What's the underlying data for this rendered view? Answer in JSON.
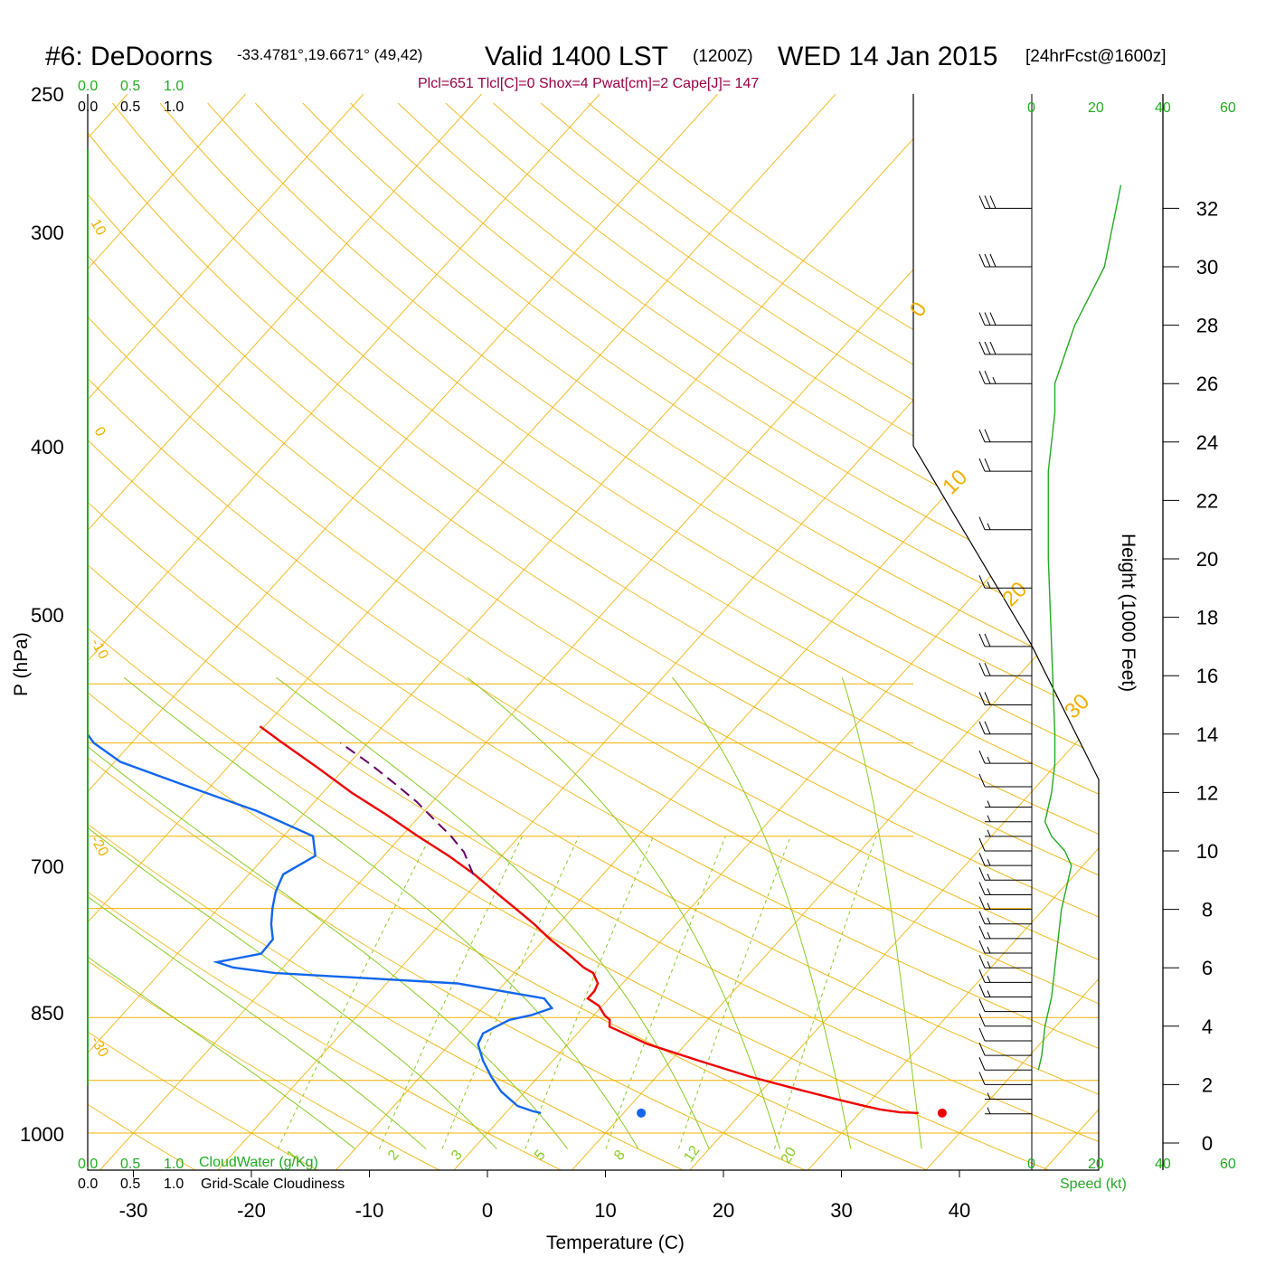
{
  "header": {
    "station": "#6: DeDoorns",
    "coords": "-33.4781°,19.6671° (49,42)",
    "valid": "Valid 1400 LST",
    "utc": "(1200Z)",
    "date": "WED 14 Jan 2015",
    "forecast": "[24hrFcst@1600z]",
    "indices": "Plcl=651 Tlcl[C]=0 Shox=4 Pwat[cm]=2 Cape[J]= 147"
  },
  "top_scales": {
    "green": [
      "0.0",
      "0.5",
      "1.0"
    ],
    "black": [
      "0.0",
      "0.5",
      "1.0"
    ]
  },
  "bottom_legend": {
    "green_scale": [
      "0.0",
      "0.5",
      "1.0"
    ],
    "cloudwater_label": "CloudWater (g/Kg)",
    "black_scale": [
      "0.0",
      "0.5",
      "1.0"
    ],
    "cloudiness_label": "Grid-Scale Cloudiness"
  },
  "wind_panel": {
    "speed_ticks": [
      "0",
      "20",
      "40",
      "60"
    ],
    "speed_label": "Speed (kt)"
  },
  "axes": {
    "ylabel": "P (hPa)",
    "xlabel": "Temperature (C)",
    "height_label": "Height (1000 Feet)",
    "pressure_ticks": [
      "250",
      "300",
      "400",
      "500",
      "700",
      "850",
      "1000"
    ],
    "temperature_ticks": [
      "-30",
      "-20",
      "-10",
      "0",
      "10",
      "20",
      "30",
      "40"
    ],
    "height_ticks": [
      "32",
      "30",
      "28",
      "26",
      "24",
      "22",
      "20",
      "18",
      "16",
      "14",
      "12",
      "10",
      "8",
      "6",
      "4",
      "2",
      "0"
    ]
  },
  "isotherm_labels": [
    "10",
    "0",
    "-10",
    "-20",
    "-30"
  ],
  "dry_adiabat_labels": [
    "0",
    "10",
    "20",
    "30"
  ],
  "mixing_ratio_labels": [
    "1",
    "2",
    "3",
    "5",
    "8",
    "12",
    "20"
  ],
  "colors": {
    "temperature": "#ee0000",
    "dewpoint": "#1166ee",
    "parcel": "#660066",
    "isotherms": "#f0b000",
    "moist_adiabats": "#88cc22",
    "mixing_ratio": "#88cc22",
    "wind_speed": "#22aa22",
    "header_indices": "#990044"
  },
  "chart_data": {
    "type": "line",
    "title": "#6: DeDoorns -33.4781°,19.6671° (49,42) Valid 1400 LST (1200Z) WED 14 Jan 2015 [24hrFcst@1600z]",
    "xlabel": "Temperature (C)",
    "ylabel": "P (hPa)",
    "xlim": [
      -30,
      40
    ],
    "ylim": [
      1000,
      250
    ],
    "y_scale": "log",
    "series": [
      {
        "name": "Temperature",
        "pressure": [
          940,
          938,
          930,
          920,
          900,
          870,
          840,
          800,
          760,
          720,
          705,
          695,
          675,
          660,
          645,
          630,
          610,
          600,
          575,
          550,
          525,
          500,
          475,
          450,
          425,
          400,
          375,
          350,
          325,
          300,
          285
        ],
        "temperature": [
          35,
          33.4,
          31.5,
          29.9,
          26.9,
          22.4,
          17.9,
          12.4,
          6.8,
          2.2,
          1.7,
          0.9,
          -0.3,
          -1.8,
          -1.8,
          -2.1,
          -3.3,
          -4.5,
          -6.9,
          -9.5,
          -12.0,
          -14.8,
          -17.8,
          -20.9,
          -24.5,
          -28.6,
          -32.8,
          -37.5,
          -42.1,
          -47.2,
          -50.4
        ]
      },
      {
        "name": "Dewpoint",
        "pressure": [
          940,
          935,
          920,
          880,
          840,
          800,
          760,
          735,
          705,
          695,
          680,
          660,
          630,
          610,
          600,
          590,
          575,
          550,
          525,
          500,
          475,
          450,
          425,
          400,
          370,
          340,
          318,
          300,
          285
        ],
        "temperature": [
          3.0,
          2.2,
          0.5,
          -2.0,
          -4.0,
          -5.9,
          -7.6,
          -8.0,
          -6.8,
          -5.3,
          -4.1,
          -5.5,
          -14.0,
          -30.3,
          -34.2,
          -36.0,
          -32.9,
          -33.0,
          -34.3,
          -35.4,
          -36.4,
          -37.1,
          -35.8,
          -37.5,
          -44.2,
          -52.8,
          -59.5,
          -63.2,
          -65.5
        ]
      },
      {
        "name": "Parcel",
        "pressure": [
          450,
          420,
          400,
          380,
          360,
          340,
          320,
          300
        ],
        "temperature": [
          -21.0,
          -23.5,
          -25.8,
          -28.5,
          -31.3,
          -34.6,
          -38.2,
          -42.3
        ]
      }
    ],
    "surface_points": {
      "temperature": 37.0,
      "dewpoint": 11.5,
      "pressure": 940
    },
    "winds": {
      "height_kft": [
        32,
        30,
        28,
        27,
        26,
        24,
        23,
        21,
        19,
        17,
        16,
        15,
        14,
        13,
        12.2,
        11.5,
        11.0,
        10.5,
        10.0,
        9.5,
        9.0,
        8.5,
        8.0,
        7.5,
        7.0,
        6.5,
        6.0,
        5.5,
        5.0,
        4.5,
        4.0,
        3.5,
        3.0,
        2.5,
        2.0,
        1.5,
        1.0
      ],
      "speed_kt": [
        30,
        30,
        30,
        28,
        26,
        22,
        18,
        16,
        16,
        18,
        18,
        18,
        18,
        16,
        12,
        6,
        4,
        6,
        12,
        14,
        16,
        16,
        16,
        15,
        15,
        14,
        14,
        13,
        13,
        12,
        12,
        11,
        10,
        9,
        8,
        6,
        5
      ]
    },
    "wind_speed_profile": {
      "height_kft": [
        32.8,
        30.0,
        28.0,
        26.0,
        25.0,
        23.0,
        20.0,
        17.0,
        14.0,
        13.0,
        12.0,
        11.0,
        10.5,
        10.0,
        9.5,
        9.0,
        8.0,
        7.0,
        6.0,
        5.0,
        4.0,
        3.0,
        2.5
      ],
      "speed_kt": [
        27,
        22,
        13,
        7,
        7,
        5,
        5,
        6,
        7,
        7,
        6,
        4,
        6,
        10,
        12,
        11,
        9,
        8,
        7,
        6,
        4,
        3,
        2
      ]
    }
  }
}
